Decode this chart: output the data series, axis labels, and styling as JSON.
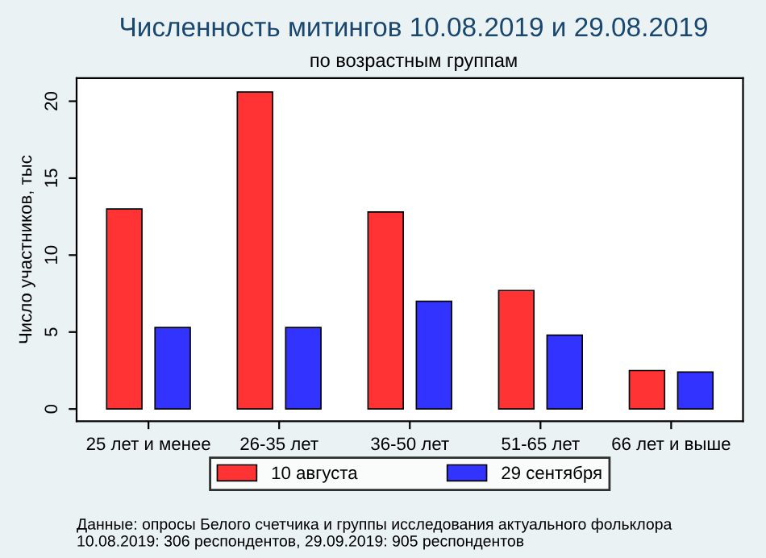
{
  "chart_data": {
    "type": "bar",
    "title": "Численность митингов 10.08.2019 и 29.08.2019",
    "subtitle": "по возрастным группам",
    "ylabel": "Число участников, тыс",
    "categories": [
      "25 лет и менее",
      "26-35 лет",
      "36-50 лет",
      "51-65 лет",
      "66 лет и выше"
    ],
    "series": [
      {
        "name": "10 августа",
        "color": "#ff3333",
        "values": [
          13.0,
          20.6,
          12.8,
          7.7,
          2.5
        ]
      },
      {
        "name": "29 сентября",
        "color": "#3333ff",
        "values": [
          5.3,
          5.3,
          7.0,
          4.8,
          2.4
        ]
      }
    ],
    "ylim": [
      -0.8,
      21.5
    ],
    "yticks": [
      0,
      5,
      10,
      15,
      20
    ],
    "grid": false,
    "legend": "bottom",
    "annotations": [
      "Данные: опросы Белого счетчика и группы исследования актуального фольклора\n10.08.2019: 306 респондентов, 29.09.2019: 905 респондентов"
    ]
  }
}
